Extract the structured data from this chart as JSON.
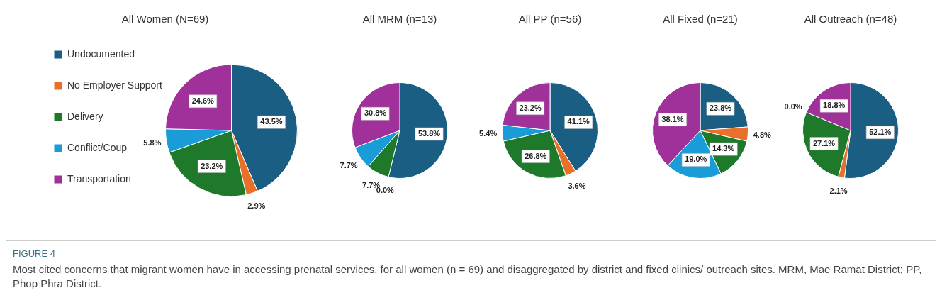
{
  "chart_data": [
    {
      "type": "pie",
      "title": "All Women (N=69)",
      "legend": "left",
      "categories": [
        "Undocumented",
        "No Employer Support",
        "Delivery",
        "Conflict/Coup",
        "Transportation"
      ],
      "values": [
        43.5,
        2.9,
        23.2,
        5.8,
        24.6
      ],
      "value_labels": [
        "43.5%",
        "2.9%",
        "23.2%",
        "5.8%",
        "24.6%"
      ],
      "colors": [
        "#1b5e84",
        "#e8702a",
        "#1e7a2a",
        "#1a9cd8",
        "#a0319a"
      ],
      "annotations": [
        "FIGURE 4",
        "Most cited concerns that migrant women have in accessing prenatal services, for all women (n = 69) and disaggregated by district and fixed clinics/ outreach sites. MRM, Mae Ramat District; PP, Phop Phra District."
      ]
    },
    {
      "type": "pie",
      "title": "All MRM (n=13)",
      "values": [
        53.8,
        0.0,
        7.7,
        7.7,
        30.8
      ],
      "value_labels": [
        "53.8%",
        "0.0%",
        "7.7%",
        "7.7%",
        "30.8%"
      ],
      "colors": [
        "#1b5e84",
        "#e8702a",
        "#1e7a2a",
        "#1a9cd8",
        "#a0319a"
      ]
    },
    {
      "type": "pie",
      "title": "All PP (n=56)",
      "values": [
        41.1,
        3.6,
        26.8,
        5.4,
        23.2
      ],
      "value_labels": [
        "41.1%",
        "3.6%",
        "26.8%",
        "5.4%",
        "23.2%"
      ],
      "colors": [
        "#1b5e84",
        "#e8702a",
        "#1e7a2a",
        "#1a9cd8",
        "#a0319a"
      ]
    },
    {
      "type": "pie",
      "title": "All Fixed (n=21)",
      "values": [
        23.8,
        4.8,
        14.3,
        19.0,
        38.1
      ],
      "value_labels": [
        "23.8%",
        "4.8%",
        "14.3%",
        "19.0%",
        "38.1%"
      ],
      "colors": [
        "#1b5e84",
        "#e8702a",
        "#1e7a2a",
        "#1a9cd8",
        "#a0319a"
      ]
    },
    {
      "type": "pie",
      "title": "All Outreach (n=48)",
      "values": [
        52.1,
        2.1,
        27.1,
        0.0,
        18.8
      ],
      "value_labels": [
        "52.1%",
        "2.1%",
        "27.1%",
        "0.0%",
        "18.8%"
      ],
      "colors": [
        "#1b5e84",
        "#e8702a",
        "#1e7a2a",
        "#1a9cd8",
        "#a0319a"
      ]
    }
  ]
}
